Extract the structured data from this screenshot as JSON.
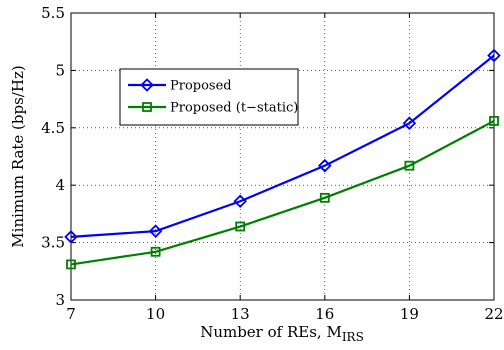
{
  "chart_data": {
    "type": "line",
    "xlabel": "Number of REs, M",
    "xlabel_subscript": "IRS",
    "ylabel": "Minimum Rate (bps/Hz)",
    "xlim": [
      7,
      22
    ],
    "ylim": [
      3,
      5.5
    ],
    "x": [
      7,
      10,
      13,
      16,
      19,
      22
    ],
    "x_tick_labels": [
      "7",
      "10",
      "13",
      "16",
      "19",
      "22"
    ],
    "y_ticks": [
      3,
      3.5,
      4,
      4.5,
      5,
      5.5
    ],
    "y_tick_labels": [
      "3",
      "3.5",
      "4",
      "4.5",
      "5",
      "5.5"
    ],
    "grid": true,
    "legend_position": "upper-left",
    "series": [
      {
        "name": "Proposed",
        "color": "#0000ff",
        "marker": "diamond",
        "values": [
          3.55,
          3.6,
          3.86,
          4.17,
          4.54,
          5.13
        ]
      },
      {
        "name": "Proposed (t−static)",
        "color": "#008000",
        "marker": "square",
        "values": [
          3.31,
          3.42,
          3.64,
          3.89,
          4.17,
          4.56
        ]
      }
    ]
  }
}
